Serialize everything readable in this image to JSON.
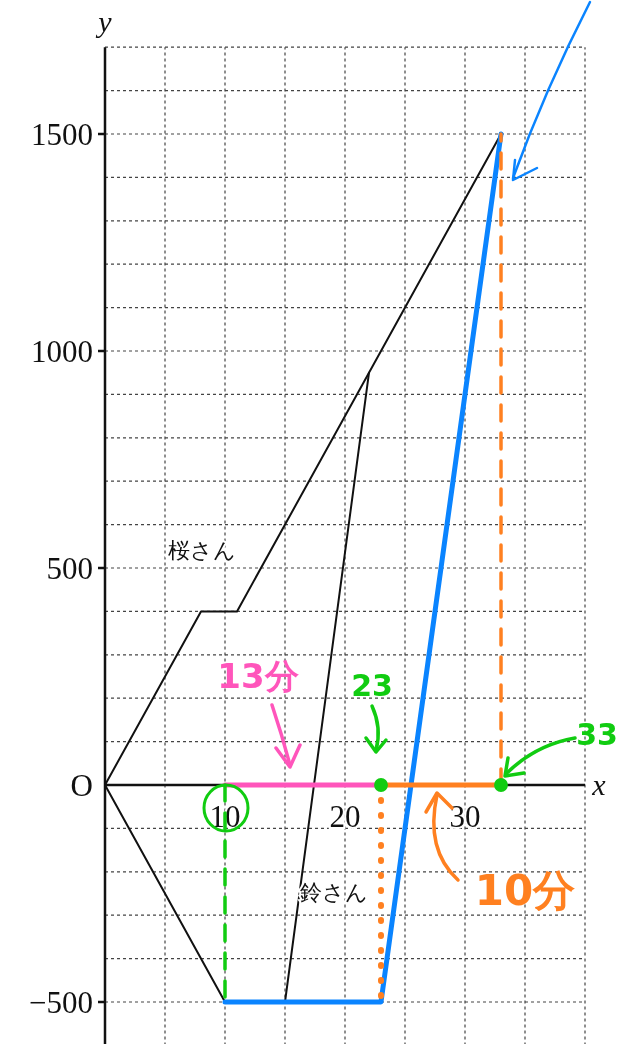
{
  "chart_data": {
    "type": "line",
    "xlabel": "x",
    "ylabel": "y",
    "xlim": [
      0,
      40
    ],
    "ylim": [
      -600,
      1700
    ],
    "xticks": [
      {
        "value": 5,
        "label": null
      },
      10,
      {
        "value": 15,
        "label": null
      },
      20,
      {
        "value": 25,
        "label": null
      },
      30,
      {
        "value": 35,
        "label": null
      },
      {
        "value": 40,
        "label": null
      }
    ],
    "yticks": [
      {
        "value": -500,
        "label": "−500"
      },
      {
        "value": -400,
        "label": null
      },
      {
        "value": -300,
        "label": null
      },
      {
        "value": -200,
        "label": null
      },
      {
        "value": -100,
        "label": null
      },
      {
        "value": 0,
        "label": "O"
      },
      {
        "value": 100,
        "label": null
      },
      {
        "value": 200,
        "label": null
      },
      {
        "value": 300,
        "label": null
      },
      {
        "value": 400,
        "label": null
      },
      500,
      {
        "value": 600,
        "label": null
      },
      {
        "value": 700,
        "label": null
      },
      {
        "value": 800,
        "label": null
      },
      {
        "value": 900,
        "label": null
      },
      1000,
      {
        "value": 1100,
        "label": null
      },
      {
        "value": 1200,
        "label": null
      },
      {
        "value": 1300,
        "label": null
      },
      {
        "value": 1400,
        "label": null
      },
      1500,
      {
        "value": 1600,
        "label": null
      },
      {
        "value": 1700,
        "label": null
      }
    ],
    "grid": true,
    "line_style": "solid",
    "marker": "none",
    "series": [
      {
        "name": "桜さん",
        "color": "#111111",
        "x": [
          0,
          8,
          11,
          33
        ],
        "values": [
          0,
          400,
          400,
          1500
        ]
      },
      {
        "name": "鈴さん",
        "color": "#111111",
        "x": [
          0,
          10,
          15,
          22
        ],
        "values": [
          0,
          -500,
          -500,
          950
        ]
      },
      {
        "color": "#0a84ff",
        "x": [
          10,
          23,
          33
        ],
        "values": [
          -500,
          -500,
          1500
        ]
      },
      {
        "color": "#ff55bb",
        "x": [
          10,
          23
        ],
        "values": [
          0,
          0
        ]
      },
      {
        "color": "#ff8020",
        "x": [
          23,
          33
        ],
        "values": [
          0,
          0
        ]
      },
      {
        "color": "#11cc11",
        "x": [
          10,
          10
        ],
        "values": [
          0,
          -500
        ],
        "line_style": "dashed"
      },
      {
        "color": "#ff8020",
        "x": [
          23,
          23
        ],
        "values": [
          0,
          -500
        ],
        "line_style": "dotted"
      },
      {
        "color": "#ff8020",
        "x": [
          33,
          33
        ],
        "values": [
          0,
          1500
        ],
        "line_style": "dashed"
      },
      {
        "type": "scatter",
        "color": "#11cc11",
        "x": [
          23,
          33
        ],
        "values": [
          0,
          0
        ],
        "marker": "circle"
      }
    ],
    "annotations": [
      {
        "text": "13分",
        "x": 16.5,
        "y": 0
      },
      {
        "text": "23",
        "x": 23,
        "y": 0
      },
      {
        "text": "33",
        "x": 33,
        "y": 0
      },
      {
        "text": "10分",
        "x": 28,
        "y": 0
      }
    ]
  }
}
